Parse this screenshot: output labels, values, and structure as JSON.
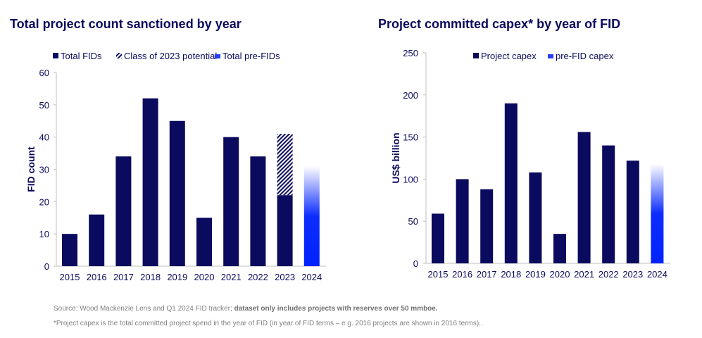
{
  "chart_data": [
    {
      "type": "bar",
      "title": "Total project count sanctioned by year",
      "xlabel": "",
      "ylabel": "FID count",
      "ylim": [
        0,
        60
      ],
      "yticks": [
        0,
        10,
        20,
        30,
        40,
        50,
        60
      ],
      "categories": [
        "2015",
        "2016",
        "2017",
        "2018",
        "2019",
        "2020",
        "2021",
        "2022",
        "2023",
        "2024"
      ],
      "legend_position": "top",
      "grid": false,
      "series": [
        {
          "name": "Total FIDs",
          "style": "solid",
          "color": "#0a0a5e",
          "values": [
            10,
            16,
            34,
            52,
            45,
            15,
            40,
            34,
            22,
            null
          ]
        },
        {
          "name": "Class of 2023 potential",
          "style": "hatched",
          "color": "#0a0a5e",
          "stacked_on": "Total FIDs",
          "values": [
            null,
            null,
            null,
            null,
            null,
            null,
            null,
            null,
            19,
            null
          ]
        },
        {
          "name": "Total pre-FIDs",
          "style": "gradient",
          "color": "#0022ff",
          "values": [
            null,
            null,
            null,
            null,
            null,
            null,
            null,
            null,
            null,
            31
          ]
        }
      ]
    },
    {
      "type": "bar",
      "title": "Project committed capex* by year of FID",
      "xlabel": "",
      "ylabel": "US$ billion",
      "ylim": [
        0,
        250
      ],
      "yticks": [
        0,
        50,
        100,
        150,
        200,
        250
      ],
      "categories": [
        "2015",
        "2016",
        "2017",
        "2018",
        "2019",
        "2020",
        "2021",
        "2022",
        "2023",
        "2024"
      ],
      "legend_position": "top",
      "grid": false,
      "series": [
        {
          "name": "Project capex",
          "style": "solid",
          "color": "#0a0a5e",
          "values": [
            59,
            100,
            88,
            190,
            108,
            35,
            156,
            140,
            122,
            null
          ]
        },
        {
          "name": "pre-FID capex",
          "style": "gradient",
          "color": "#0022ff",
          "values": [
            null,
            null,
            null,
            null,
            null,
            null,
            null,
            null,
            null,
            118
          ]
        }
      ]
    }
  ],
  "footnotes": {
    "source_prefix": "Source: Wood Mackenzie Lens and Q1 2024 FID tracker; ",
    "source_bold": "dataset only includes projects with reserves over 50 mmboe.",
    "note": "*Project capex is the total committed project spend in the year of FID (in year of FID terms – e.g. 2016 projects are shown in 2016 terms).."
  }
}
